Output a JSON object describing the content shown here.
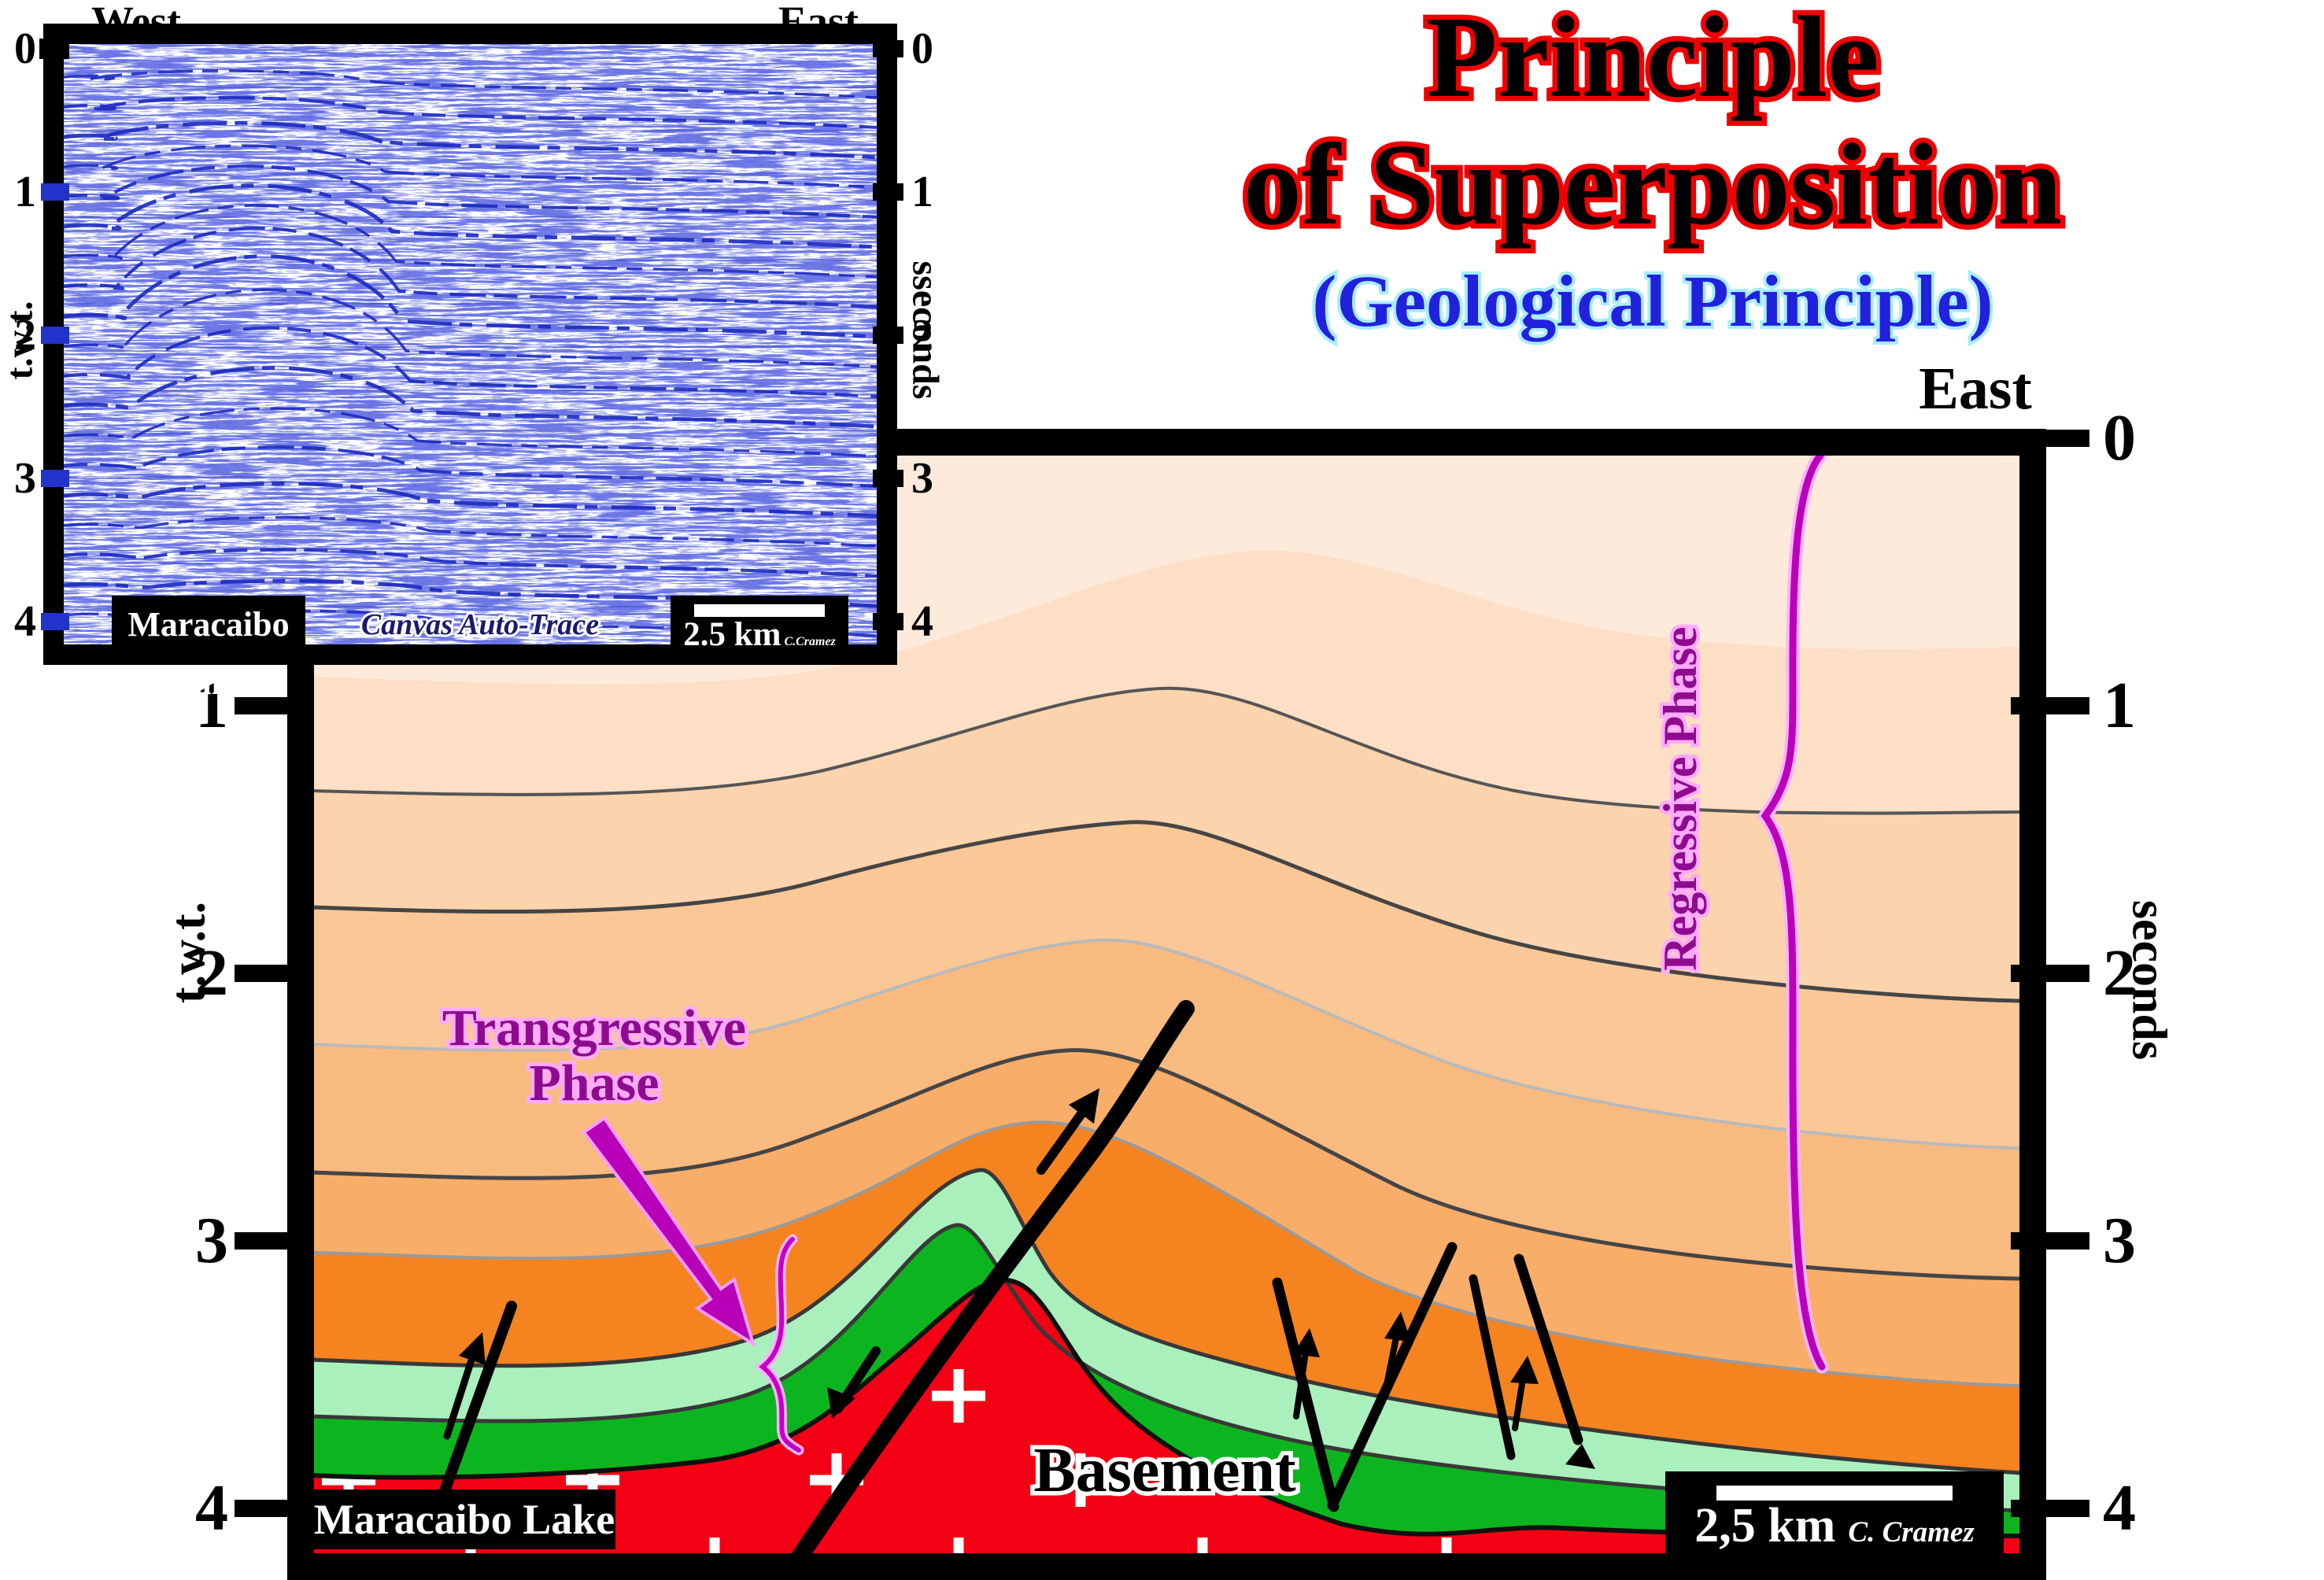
{
  "title": {
    "line1": "Principle",
    "line2": "of Superposition",
    "subtitle": "(Geological Principle)"
  },
  "seismic_inset": {
    "west_label": "West",
    "east_label": "East",
    "axis_left_label": "t.w.t.",
    "axis_right_label": "sseconds",
    "left_ticks": [
      "0",
      "1",
      "2",
      "3",
      "4"
    ],
    "right_ticks": [
      "0",
      "1",
      "2",
      "3",
      "4"
    ],
    "location_label": "Maracaibo Lake",
    "scale_label": "2.5 km",
    "credit": "C.Cramez",
    "watermark": "Canvas Auto-Trace"
  },
  "cross_section": {
    "east_label": "East",
    "axis_left_label": "t.w.t.",
    "axis_right_label": "seconds",
    "left_ticks": [
      "1",
      "2",
      "3",
      "4"
    ],
    "right_ticks": [
      "0",
      "1",
      "2",
      "3",
      "4"
    ],
    "transgressive_line1": "Transgressive",
    "transgressive_line2": "Phase",
    "regressive_label": "Regressive Phase",
    "basement_label": "Basement",
    "location_label": "Maracaibo Lake",
    "scale_label": "2,5 km",
    "credit": "C. Cramez"
  },
  "colors": {
    "title_fill": "#000000",
    "title_outline": "#ee0000",
    "subtitle_fill": "#2121dd",
    "subtitle_outline": "#a8ecff",
    "phase_fill": "#8e0b8e",
    "phase_outline": "#ffaaff",
    "magenta": "#c400c4",
    "seismic_blue": "#1b2ac0",
    "basement_red": "#f40014",
    "light_green": "#a9f0bc",
    "dark_green": "#0cb51f",
    "layer_oranges": [
      "#fdeada",
      "#fcdfc4",
      "#fbd3ad",
      "#fac797",
      "#f9ba80",
      "#f8ad69",
      "#f5831f"
    ]
  }
}
